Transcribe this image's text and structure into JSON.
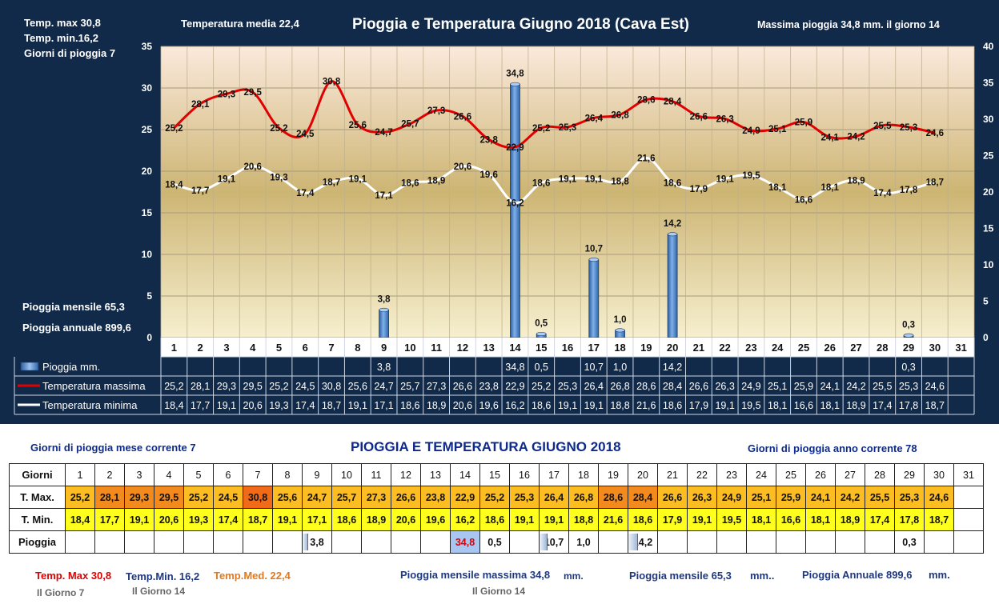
{
  "colors": {
    "panel_bg": "#112a4a",
    "tmax_line": "#e00000",
    "tmin_line": "#ffffff",
    "rain_bar": "#4a86d0",
    "plot_top": "#fbe9dc",
    "plot_mid": "#cdb573",
    "plot_bottom": "#f6efcf",
    "cell_tmax_hot": "#f28a1e",
    "cell_tmax": "#fbbd21",
    "cell_tmin": "#ffff1e",
    "cell_rain_max": "#a9c6f0",
    "title_blue": "#0e2a8a",
    "footer_red": "#e00000",
    "footer_blue": "#1f3880",
    "footer_orange": "#e07a20"
  },
  "chart_data": {
    "type": "bar+line",
    "title": "Pioggia e Temperatura Giugno 2018 (Cava Est)",
    "categories": [
      "1",
      "2",
      "3",
      "4",
      "5",
      "6",
      "7",
      "8",
      "9",
      "10",
      "11",
      "12",
      "13",
      "14",
      "15",
      "16",
      "17",
      "18",
      "19",
      "20",
      "21",
      "22",
      "23",
      "24",
      "25",
      "26",
      "27",
      "28",
      "29",
      "30",
      "31"
    ],
    "ylim": [
      0,
      35
    ],
    "y_ticks": [
      "0",
      "5",
      "10",
      "15",
      "20",
      "25",
      "30",
      "35"
    ],
    "y2lim": [
      0,
      40
    ],
    "y2_ticks": [
      "0",
      "5",
      "10",
      "15",
      "20",
      "25",
      "30",
      "35",
      "40"
    ],
    "grid": true,
    "series": [
      {
        "name": "Pioggia mm.",
        "kind": "bar",
        "axis": "right",
        "values": [
          null,
          null,
          null,
          null,
          null,
          null,
          null,
          null,
          3.8,
          null,
          null,
          null,
          null,
          34.8,
          0.5,
          null,
          10.7,
          1.0,
          null,
          14.2,
          null,
          null,
          null,
          null,
          null,
          null,
          null,
          null,
          0.3,
          null,
          null
        ],
        "labels": [
          "",
          "",
          "",
          "",
          "",
          "",
          "",
          "",
          "3,8",
          "",
          "",
          "",
          "",
          "34,8",
          "0,5",
          "",
          "10,7",
          "1,0",
          "",
          "14,2",
          "",
          "",
          "",
          "",
          "",
          "",
          "",
          "",
          "0,3",
          "",
          ""
        ]
      },
      {
        "name": "Temperatura massima",
        "kind": "line",
        "axis": "left",
        "values": [
          25.2,
          28.1,
          29.3,
          29.5,
          25.2,
          24.5,
          30.8,
          25.6,
          24.7,
          25.7,
          27.3,
          26.6,
          23.8,
          22.9,
          25.2,
          25.3,
          26.4,
          26.8,
          28.6,
          28.4,
          26.6,
          26.3,
          24.9,
          25.1,
          25.9,
          24.1,
          24.2,
          25.5,
          25.3,
          24.6,
          null
        ],
        "labels": [
          "25,2",
          "28,1",
          "29,3",
          "29,5",
          "25,2",
          "24,5",
          "30,8",
          "25,6",
          "24,7",
          "25,7",
          "27,3",
          "26,6",
          "23,8",
          "22,9",
          "25,2",
          "25,3",
          "26,4",
          "26,8",
          "28,6",
          "28,4",
          "26,6",
          "26,3",
          "24,9",
          "25,1",
          "25,9",
          "24,1",
          "24,2",
          "25,5",
          "25,3",
          "24,6",
          ""
        ]
      },
      {
        "name": "Temperatura minima",
        "kind": "line",
        "axis": "left",
        "values": [
          18.4,
          17.7,
          19.1,
          20.6,
          19.3,
          17.4,
          18.7,
          19.1,
          17.1,
          18.6,
          18.9,
          20.6,
          19.6,
          16.2,
          18.6,
          19.1,
          19.1,
          18.8,
          21.6,
          18.6,
          17.9,
          19.1,
          19.5,
          18.1,
          16.6,
          18.1,
          18.9,
          17.4,
          17.8,
          18.7,
          null
        ],
        "labels": [
          "18,4",
          "17,7",
          "19,1",
          "20,6",
          "19,3",
          "17,4",
          "18,7",
          "19,1",
          "17,1",
          "18,6",
          "18,9",
          "20,6",
          "19,6",
          "16,2",
          "18,6",
          "19,1",
          "19,1",
          "18,8",
          "21,6",
          "18,6",
          "17,9",
          "19,1",
          "19,5",
          "18,1",
          "16,6",
          "18,1",
          "18,9",
          "17,4",
          "17,8",
          "18,7",
          ""
        ]
      }
    ],
    "legend": [
      "Pioggia mm.",
      "Temperatura massima",
      "Temperatura minima"
    ],
    "legend_placement": "bottom-data-table"
  },
  "header": {
    "tmax": "Temp. max  30,8",
    "tmin": "Temp.  min.16,2",
    "rain_days": "Giorni  di pioggia   7",
    "media": "Temperatura media  22,4",
    "max_rain": "Massima pioggia  34,8 mm.  il giorno 14",
    "monthly_rain": "Pioggia mensile    65,3",
    "annual_rain": "Pioggia annuale   899,6"
  },
  "bottom": {
    "title": "PIOGGIA E TEMPERATURA GIUGNO 2018",
    "rain_days_month": "Giorni di pioggia mese corrente    7",
    "rain_days_year": "Giorni di pioggia anno corrente  78",
    "table": {
      "col_header": "Giorni",
      "row_tmax": "T. Max.",
      "row_tmin": "T. Min.",
      "row_rain": "Pioggia",
      "rain_max_day": "14"
    },
    "footer": {
      "tmax": "Temp. Max  30,8",
      "tmax_day": "Il Giorno   7",
      "tmin": "Temp.Min.  16,2",
      "tmin_day": "Il Giorno 14",
      "tmed": "Temp.Med. 22,4",
      "max_monthly": "Pioggia mensile massima  34,8",
      "max_monthly_unit": "mm.",
      "max_monthly_day": "Il Giorno 14",
      "monthly": "Pioggia mensile   65,3",
      "monthly_unit": "mm..",
      "annual": "Pioggia Annuale  899,6",
      "annual_unit": "mm."
    }
  }
}
